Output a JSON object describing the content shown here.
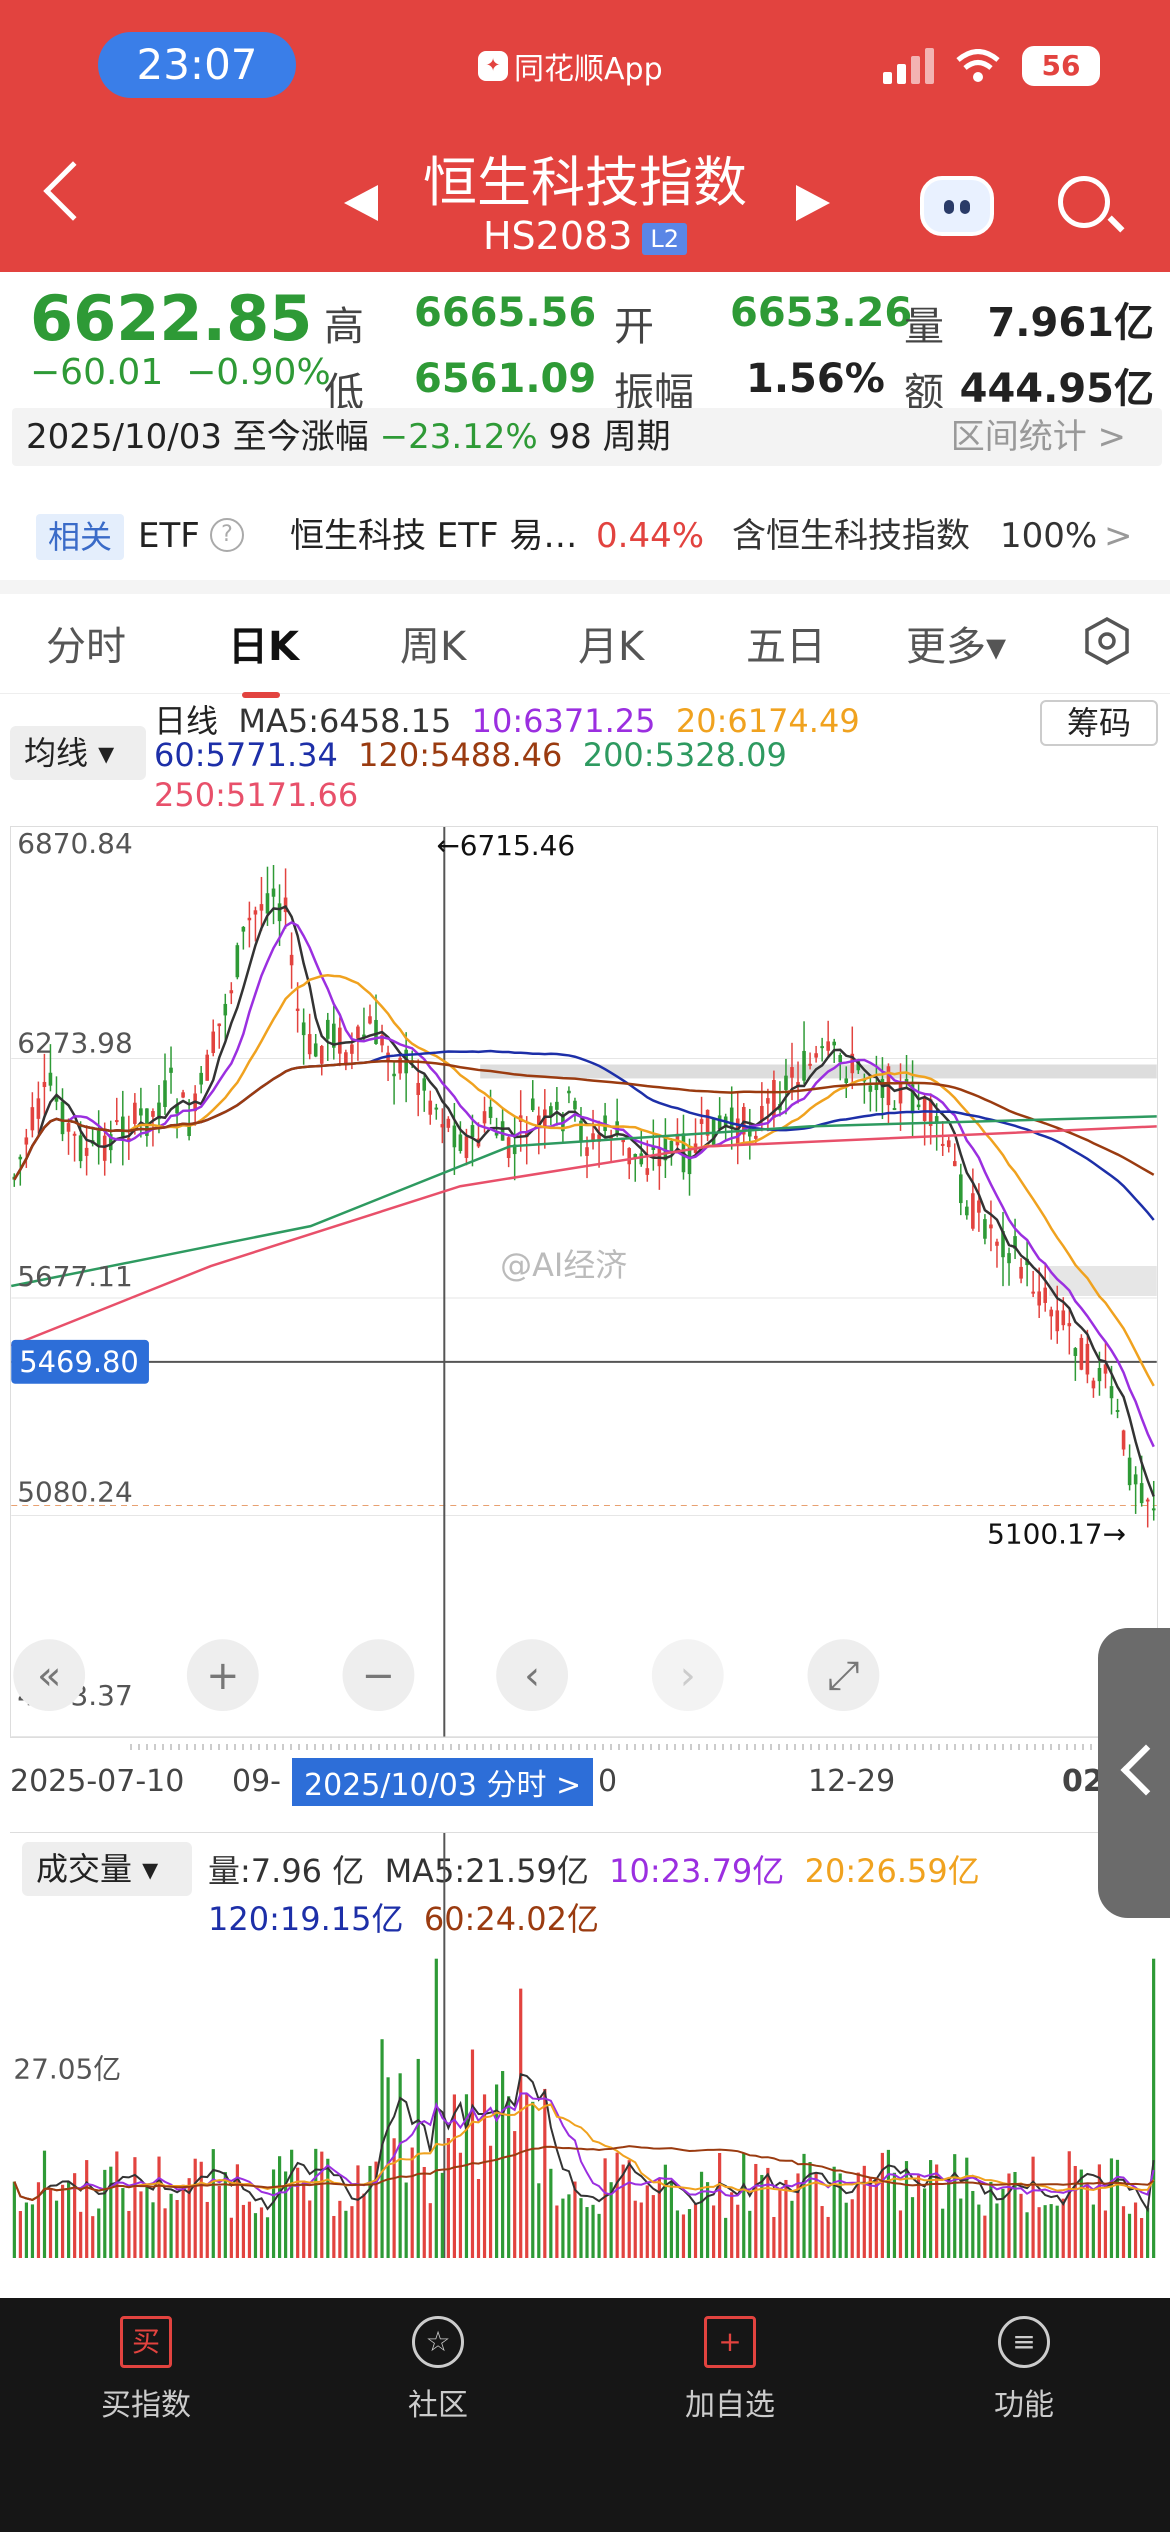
{
  "status_bar": {
    "time": "23:07",
    "app": "同花顺App",
    "battery": "56"
  },
  "header": {
    "title": "恒生科技指数",
    "code": "HS2083",
    "level": "L2"
  },
  "quote": {
    "price": "6622.85",
    "change": "−60.01",
    "change_pct": "−0.90%",
    "high_label": "高",
    "high": "6665.56",
    "open_label": "开",
    "open": "6653.26",
    "vol_label": "量",
    "vol": "7.961亿",
    "low_label": "低",
    "low": "6561.09",
    "amp_label": "振幅",
    "amp": "1.56%",
    "amt_label": "额",
    "amt": "444.95亿"
  },
  "range": {
    "text": "2025/10/03 至今涨幅",
    "pct": "−23.12%",
    "period": "98 周期",
    "stat": "区间统计 >"
  },
  "etf": {
    "tag": "相关",
    "label": "ETF",
    "help": "?",
    "name": "恒生科技 ETF 易…",
    "pct": "0.44%",
    "contain": "含恒生科技指数",
    "ratio": "100%",
    "arrow": ">"
  },
  "tabs": [
    "分时",
    "日K",
    "周K",
    "月K",
    "五日",
    "更多▾"
  ],
  "ma": {
    "btn": "均线 ▾",
    "line": "日线",
    "ma5": "MA5:6458.15",
    "ma10": "10:6371.25",
    "ma20": "20:6174.49",
    "ma60": "60:5771.34",
    "ma120": "120:5488.46",
    "ma200": "200:5328.09",
    "ma250": "250:5171.66",
    "chip": "筹码"
  },
  "chart": {
    "y_labels": [
      "6870.84",
      "6273.98",
      "5677.11",
      "5080.24",
      "4483.37"
    ],
    "current": "5469.80",
    "high_mark": "←6715.46",
    "low_mark": "5100.17→",
    "x_labels": [
      "2025-07-10",
      "09-",
      "2025/10/03 分时 >",
      "0",
      "12-29",
      "02"
    ],
    "watermark": "@AI经济",
    "controls": [
      "«",
      "+",
      "−",
      "‹",
      "›",
      "⤢"
    ]
  },
  "volume": {
    "btn": "成交量 ▾",
    "vol": "量:7.96 亿",
    "ma5": "MA5:21.59亿",
    "ma10": "10:23.79亿",
    "ma20": "20:26.59亿",
    "ma120": "120:19.15亿",
    "ma60": "60:24.02亿",
    "y_label": "27.05亿"
  },
  "nav": [
    {
      "icon": "买",
      "label": "买指数"
    },
    {
      "icon": "☆",
      "label": "社区"
    },
    {
      "icon": "+",
      "label": "加自选"
    },
    {
      "icon": "≡",
      "label": "功能"
    }
  ],
  "colors": {
    "red": "#e2433f",
    "green": "#2e9a36",
    "ma5": "#333333",
    "ma10": "#9b2fe0",
    "ma20": "#f0a21f",
    "ma60": "#1d2fa8",
    "ma120": "#9a3b10",
    "ma200": "#2e9a60",
    "ma250": "#e8506a"
  }
}
